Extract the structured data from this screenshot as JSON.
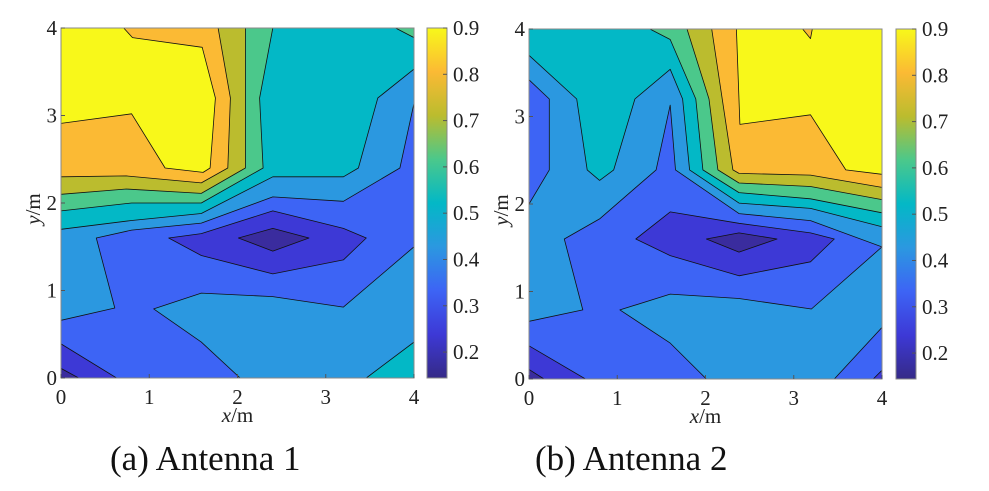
{
  "band_colors": [
    "#3a2c9e",
    "#3d39d6",
    "#3d64f5",
    "#2b98e0",
    "#03b8c6",
    "#4bc88b",
    "#bbbc2e",
    "#fbba34",
    "#f8f81a"
  ],
  "colormap_stops": [
    "#352a87",
    "#3d39d6",
    "#3d64f5",
    "#2b98e0",
    "#03b8c6",
    "#4bc88b",
    "#bbbc2e",
    "#fbba34",
    "#f8f81a"
  ],
  "chart_data": [
    {
      "type": "contour",
      "caption": "(a) Antenna 1",
      "xlabel_var": "x",
      "xlabel_unit": "/m",
      "ylabel_var": "y",
      "ylabel_unit": "/m",
      "xlim": [
        0,
        4
      ],
      "ylim": [
        0,
        4
      ],
      "xticks": [
        "0",
        "1",
        "2",
        "3",
        "4"
      ],
      "yticks": [
        "0",
        "1",
        "2",
        "3",
        "4"
      ],
      "colorbar": {
        "range": [
          0.144,
          0.9
        ],
        "ticks": [
          "0.2",
          "0.3",
          "0.4",
          "0.5",
          "0.6",
          "0.7",
          "0.8",
          "0.9"
        ]
      },
      "background_band": 2,
      "regions": [
        {
          "band": 3,
          "points": [
            [
              0,
              0.66
            ],
            [
              0.61,
              0.8
            ],
            [
              0.4,
              1.6
            ],
            [
              0.8,
              1.69
            ],
            [
              1.59,
              1.77
            ],
            [
              2.4,
              2.07
            ],
            [
              3.2,
              2.02
            ],
            [
              3.84,
              2.4
            ],
            [
              4,
              3.14
            ],
            [
              4,
              4
            ],
            [
              0,
              4
            ]
          ]
        },
        {
          "band": 3,
          "points": [
            [
              1.05,
              0.79
            ],
            [
              1.59,
              0.97
            ],
            [
              2.4,
              0.93
            ],
            [
              3.2,
              0.81
            ],
            [
              4,
              1.5
            ],
            [
              4,
              0
            ],
            [
              2.03,
              0
            ],
            [
              1.59,
              0.41
            ]
          ]
        },
        {
          "band": 4,
          "points": [
            [
              3.46,
              0
            ],
            [
              4,
              0.41
            ],
            [
              4,
              0
            ]
          ]
        },
        {
          "band": 1,
          "points": [
            [
              1.22,
              1.6
            ],
            [
              1.59,
              1.65
            ],
            [
              2.4,
              1.91
            ],
            [
              3.2,
              1.71
            ],
            [
              3.46,
              1.6
            ],
            [
              3.2,
              1.35
            ],
            [
              2.4,
              1.19
            ],
            [
              1.59,
              1.4
            ]
          ]
        },
        {
          "band": 0,
          "points": [
            [
              2.01,
              1.6
            ],
            [
              2.4,
              1.71
            ],
            [
              2.81,
              1.6
            ],
            [
              2.4,
              1.45
            ]
          ]
        },
        {
          "band": 1,
          "points": [
            [
              0,
              0.39
            ],
            [
              0.63,
              0
            ],
            [
              0,
              0
            ]
          ]
        },
        {
          "band": 0,
          "points": [
            [
              0,
              0.11
            ],
            [
              0.2,
              0
            ],
            [
              0,
              0
            ]
          ]
        },
        {
          "band": 4,
          "points": [
            [
              0,
              1.7
            ],
            [
              0.8,
              1.8
            ],
            [
              1.59,
              1.88
            ],
            [
              2.4,
              2.3
            ],
            [
              3.2,
              2.3
            ],
            [
              3.37,
              2.4
            ],
            [
              3.59,
              3.2
            ],
            [
              4,
              3.53
            ],
            [
              4,
              4
            ],
            [
              0,
              4
            ]
          ]
        },
        {
          "band": 5,
          "points": [
            [
              0,
              1.91
            ],
            [
              0.8,
              2.0
            ],
            [
              1.59,
              2.0
            ],
            [
              2.29,
              2.4
            ],
            [
              2.25,
              3.2
            ],
            [
              2.4,
              4
            ],
            [
              0,
              4
            ]
          ]
        },
        {
          "band": 5,
          "points": [
            [
              3.79,
              4
            ],
            [
              4,
              3.89
            ],
            [
              4,
              4
            ]
          ]
        },
        {
          "band": 6,
          "points": [
            [
              0,
              2.1
            ],
            [
              0.74,
              2.16
            ],
            [
              1.59,
              2.11
            ],
            [
              2.09,
              2.4
            ],
            [
              2.09,
              4
            ],
            [
              0,
              4
            ]
          ]
        },
        {
          "band": 7,
          "points": [
            [
              0,
              2.3
            ],
            [
              0.74,
              2.31
            ],
            [
              1.59,
              2.23
            ],
            [
              1.89,
              2.4
            ],
            [
              1.92,
              3.2
            ],
            [
              1.78,
              4
            ],
            [
              0,
              4
            ]
          ]
        },
        {
          "band": 8,
          "points": [
            [
              0,
              2.91
            ],
            [
              0.8,
              3.02
            ],
            [
              1.18,
              2.4
            ],
            [
              1.61,
              2.35
            ],
            [
              1.69,
              2.4
            ],
            [
              1.75,
              3.2
            ],
            [
              1.6,
              3.78
            ],
            [
              0.81,
              3.89
            ],
            [
              0.71,
              4
            ],
            [
              0,
              4
            ]
          ]
        }
      ]
    },
    {
      "type": "contour",
      "caption": "(b) Antenna 2",
      "xlabel_var": "x",
      "xlabel_unit": "/m",
      "ylabel_var": "y",
      "ylabel_unit": "/m",
      "xlim": [
        0,
        4
      ],
      "ylim": [
        0,
        4
      ],
      "xticks": [
        "0",
        "1",
        "2",
        "3",
        "4"
      ],
      "yticks": [
        "0",
        "1",
        "2",
        "3",
        "4"
      ],
      "colorbar": {
        "range": [
          0.144,
          0.9
        ],
        "ticks": [
          "0.2",
          "0.3",
          "0.4",
          "0.5",
          "0.6",
          "0.7",
          "0.8",
          "0.9"
        ]
      },
      "background_band": 2,
      "regions": [
        {
          "band": 3,
          "points": [
            [
              0,
              0.66
            ],
            [
              0.61,
              0.79
            ],
            [
              0.4,
              1.6
            ],
            [
              0.8,
              1.83
            ],
            [
              1.44,
              2.39
            ],
            [
              1.6,
              3.13
            ],
            [
              1.66,
              2.39
            ],
            [
              2.38,
              1.89
            ],
            [
              3.19,
              1.81
            ],
            [
              4,
              1.51
            ],
            [
              4,
              4
            ],
            [
              0,
              4
            ],
            [
              0,
              3.42
            ],
            [
              0.23,
              3.2
            ],
            [
              0.23,
              2.39
            ],
            [
              0,
              2.0
            ]
          ]
        },
        {
          "band": 3,
          "points": [
            [
              1.03,
              0.79
            ],
            [
              1.6,
              0.97
            ],
            [
              2.38,
              0.92
            ],
            [
              3.2,
              0.8
            ],
            [
              4,
              1.51
            ],
            [
              4,
              0.59
            ],
            [
              3.46,
              0
            ],
            [
              2.01,
              0
            ],
            [
              1.6,
              0.41
            ]
          ]
        },
        {
          "band": 1,
          "points": [
            [
              3.9,
              0
            ],
            [
              4,
              0.1
            ],
            [
              4,
              0
            ]
          ]
        },
        {
          "band": 1,
          "points": [
            [
              1.21,
              1.6
            ],
            [
              1.6,
              1.91
            ],
            [
              2.38,
              1.78
            ],
            [
              3.19,
              1.67
            ],
            [
              3.46,
              1.6
            ],
            [
              3.19,
              1.34
            ],
            [
              2.38,
              1.18
            ],
            [
              1.6,
              1.41
            ]
          ]
        },
        {
          "band": 0,
          "points": [
            [
              2.01,
              1.6
            ],
            [
              2.38,
              1.67
            ],
            [
              2.81,
              1.6
            ],
            [
              2.38,
              1.45
            ]
          ]
        },
        {
          "band": 1,
          "points": [
            [
              0,
              0.38
            ],
            [
              0.64,
              0
            ],
            [
              0,
              0
            ]
          ]
        },
        {
          "band": 0,
          "points": [
            [
              0,
              0.11
            ],
            [
              0.17,
              0
            ],
            [
              0,
              0
            ]
          ]
        },
        {
          "band": 4,
          "points": [
            [
              0,
              3.7
            ],
            [
              0.54,
              3.2
            ],
            [
              0.66,
              2.39
            ],
            [
              0.8,
              2.27
            ],
            [
              0.96,
              2.39
            ],
            [
              1.2,
              3.2
            ],
            [
              1.6,
              3.54
            ],
            [
              1.74,
              3.2
            ],
            [
              1.82,
              2.39
            ],
            [
              2.38,
              2.01
            ],
            [
              3.19,
              1.95
            ],
            [
              4,
              1.74
            ],
            [
              4,
              4
            ],
            [
              0,
              4
            ]
          ]
        },
        {
          "band": 5,
          "points": [
            [
              1.37,
              4
            ],
            [
              1.6,
              3.88
            ],
            [
              1.89,
              3.2
            ],
            [
              1.97,
              2.39
            ],
            [
              2.38,
              2.13
            ],
            [
              3.19,
              2.06
            ],
            [
              4,
              1.9
            ],
            [
              4,
              4
            ]
          ]
        },
        {
          "band": 6,
          "points": [
            [
              1.79,
              4
            ],
            [
              2.04,
              3.2
            ],
            [
              2.14,
              2.39
            ],
            [
              2.38,
              2.24
            ],
            [
              3.19,
              2.2
            ],
            [
              4,
              2.05
            ],
            [
              4,
              4
            ]
          ]
        },
        {
          "band": 7,
          "points": [
            [
              2.07,
              4
            ],
            [
              2.31,
              2.39
            ],
            [
              2.38,
              2.35
            ],
            [
              3.19,
              2.33
            ],
            [
              4,
              2.19
            ],
            [
              4,
              4
            ]
          ]
        },
        {
          "band": 8,
          "points": [
            [
              2.35,
              4
            ],
            [
              2.39,
              2.91
            ],
            [
              3.19,
              3.02
            ],
            [
              3.59,
              2.39
            ],
            [
              4,
              2.34
            ],
            [
              4,
              4
            ]
          ]
        },
        {
          "band": 7,
          "points": [
            [
              3.1,
              4
            ],
            [
              3.19,
              3.89
            ],
            [
              3.21,
              4
            ]
          ]
        }
      ]
    }
  ]
}
